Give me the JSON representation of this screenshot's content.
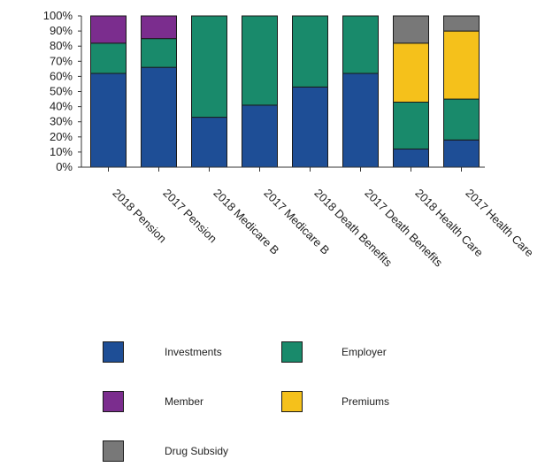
{
  "chart_data": {
    "type": "bar",
    "stacked": true,
    "categories": [
      "2018 Pension",
      "2017 Pension",
      "2018 Medicare B",
      "2017 Medicare B",
      "2018 Death Benefits",
      "2017 Death Benefits",
      "2018 Health Care",
      "2017 Health Care"
    ],
    "series": [
      {
        "name": "Investments",
        "color": "#1e4e96",
        "values": [
          62,
          66,
          33,
          41,
          53,
          62,
          12,
          18
        ]
      },
      {
        "name": "Employer",
        "color": "#198a6b",
        "values": [
          20,
          19,
          67,
          59,
          47,
          38,
          31,
          27
        ]
      },
      {
        "name": "Member",
        "color": "#7b2d8e",
        "values": [
          18,
          15,
          0,
          0,
          0,
          0,
          0,
          0
        ]
      },
      {
        "name": "Premiums",
        "color": "#f5c11b",
        "values": [
          0,
          0,
          0,
          0,
          0,
          0,
          39,
          45
        ]
      },
      {
        "name": "Drug Subsidy",
        "color": "#787878",
        "values": [
          0,
          0,
          0,
          0,
          0,
          0,
          18,
          10
        ]
      }
    ],
    "y_ticks": [
      "0%",
      "10%",
      "20%",
      "30%",
      "40%",
      "50%",
      "60%",
      "70%",
      "80%",
      "90%",
      "100%"
    ],
    "ylim": [
      0,
      100
    ],
    "title": "",
    "xlabel": "",
    "ylabel": "",
    "grid": false,
    "legend_placement": "bottom"
  }
}
